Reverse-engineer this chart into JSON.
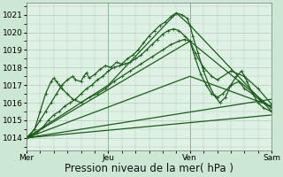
{
  "bg_color": "#cce8d4",
  "plot_bg_color": "#dff0e4",
  "grid_color": "#a8c8b0",
  "line_color": "#1a5c1a",
  "ylabel_ticks": [
    1014,
    1015,
    1016,
    1017,
    1018,
    1019,
    1020,
    1021
  ],
  "xlim": [
    0,
    9
  ],
  "ylim": [
    1013.3,
    1021.7
  ],
  "xlabel": "Pression niveau de la mer( hPa )",
  "xlabel_fontsize": 8.5,
  "tick_fontsize": 6.5,
  "day_labels": [
    "Mer",
    "Jeu",
    "Ven",
    "Sam"
  ],
  "day_positions": [
    0,
    3,
    6,
    9
  ],
  "lines": [
    {
      "x": [
        0.0,
        0.15,
        0.3,
        0.5,
        0.7,
        0.9,
        1.1,
        1.3,
        1.5,
        1.7,
        1.8,
        2.0,
        2.1,
        2.2,
        2.3,
        2.5,
        2.7,
        2.9,
        3.1,
        3.3,
        3.5,
        3.7,
        3.9,
        4.1,
        4.3,
        4.5,
        4.7,
        4.9,
        5.1,
        5.3,
        5.4,
        5.5,
        5.7,
        5.9,
        6.0,
        6.1,
        6.3,
        6.5,
        6.7,
        6.9,
        7.1,
        7.3,
        7.5,
        7.7,
        7.9,
        8.1,
        8.3,
        8.5,
        8.7,
        9.0
      ],
      "y": [
        1014.0,
        1014.2,
        1014.5,
        1015.0,
        1015.5,
        1016.0,
        1016.5,
        1017.0,
        1017.3,
        1017.5,
        1017.3,
        1017.2,
        1017.5,
        1017.7,
        1017.4,
        1017.6,
        1017.9,
        1018.1,
        1018.0,
        1018.3,
        1018.2,
        1018.5,
        1018.7,
        1019.0,
        1019.4,
        1019.8,
        1020.1,
        1020.4,
        1020.6,
        1020.9,
        1021.0,
        1021.1,
        1021.0,
        1020.8,
        1020.4,
        1019.8,
        1018.8,
        1017.8,
        1017.0,
        1016.4,
        1016.0,
        1016.3,
        1017.0,
        1017.5,
        1017.8,
        1017.2,
        1016.5,
        1016.0,
        1015.7,
        1015.5
      ],
      "marker": "+",
      "markersize": 2.5,
      "linewidth": 0.9
    },
    {
      "x": [
        0.0,
        0.2,
        0.4,
        0.6,
        0.8,
        1.0,
        1.2,
        1.4,
        1.6,
        1.8,
        2.0,
        2.2,
        2.4,
        2.6,
        2.8,
        3.0,
        3.2,
        3.4,
        3.6,
        3.8,
        4.0,
        4.2,
        4.4,
        4.6,
        4.8,
        5.0,
        5.2,
        5.4,
        5.6,
        5.8,
        6.0,
        6.2,
        6.4,
        6.6,
        6.8,
        7.0,
        7.2,
        7.5,
        7.8,
        8.0,
        8.3,
        8.6,
        9.0
      ],
      "y": [
        1014.0,
        1014.1,
        1014.3,
        1014.6,
        1015.0,
        1015.3,
        1015.5,
        1015.8,
        1016.0,
        1016.2,
        1016.5,
        1016.8,
        1017.0,
        1017.3,
        1017.5,
        1017.8,
        1018.0,
        1018.1,
        1018.2,
        1018.3,
        1018.5,
        1018.7,
        1019.0,
        1019.3,
        1019.6,
        1019.9,
        1020.1,
        1020.2,
        1020.1,
        1019.8,
        1019.5,
        1018.5,
        1017.6,
        1017.0,
        1016.5,
        1016.3,
        1016.5,
        1017.0,
        1017.2,
        1016.8,
        1016.5,
        1016.1,
        1015.7
      ],
      "marker": "+",
      "markersize": 2.5,
      "linewidth": 0.9
    },
    {
      "x": [
        0.0,
        3.0,
        5.5,
        6.0,
        9.0
      ],
      "y": [
        1014.0,
        1017.0,
        1021.1,
        1020.4,
        1015.5
      ],
      "marker": null,
      "markersize": 0,
      "linewidth": 0.9
    },
    {
      "x": [
        0.0,
        6.0,
        9.0
      ],
      "y": [
        1014.0,
        1019.5,
        1015.7
      ],
      "marker": null,
      "markersize": 0,
      "linewidth": 0.9
    },
    {
      "x": [
        0.0,
        6.0,
        9.0
      ],
      "y": [
        1014.0,
        1017.5,
        1015.8
      ],
      "marker": null,
      "markersize": 0,
      "linewidth": 0.9
    },
    {
      "x": [
        0.0,
        9.0
      ],
      "y": [
        1014.0,
        1016.2
      ],
      "marker": null,
      "markersize": 0,
      "linewidth": 0.9
    },
    {
      "x": [
        0.0,
        9.0
      ],
      "y": [
        1014.0,
        1015.3
      ],
      "marker": null,
      "markersize": 0,
      "linewidth": 0.9
    },
    {
      "x": [
        0.0,
        0.3,
        0.5,
        0.7,
        0.9,
        1.0,
        1.1,
        1.2,
        1.3,
        1.5,
        1.7,
        2.0,
        2.3,
        2.6,
        2.9,
        3.2,
        3.5,
        3.8,
        4.2,
        4.6,
        5.0,
        5.3,
        5.6,
        5.8,
        6.0,
        6.2,
        6.5,
        6.8,
        7.0,
        7.5,
        8.0,
        8.5,
        9.0
      ],
      "y": [
        1014.0,
        1014.5,
        1015.5,
        1016.5,
        1017.2,
        1017.4,
        1017.2,
        1017.0,
        1016.8,
        1016.5,
        1016.2,
        1016.0,
        1016.3,
        1016.5,
        1016.8,
        1017.2,
        1017.5,
        1017.8,
        1018.2,
        1018.6,
        1019.0,
        1019.3,
        1019.5,
        1019.6,
        1019.5,
        1018.8,
        1018.0,
        1017.5,
        1017.3,
        1017.8,
        1017.5,
        1016.8,
        1015.9
      ],
      "marker": "+",
      "markersize": 2.5,
      "linewidth": 0.9
    }
  ]
}
